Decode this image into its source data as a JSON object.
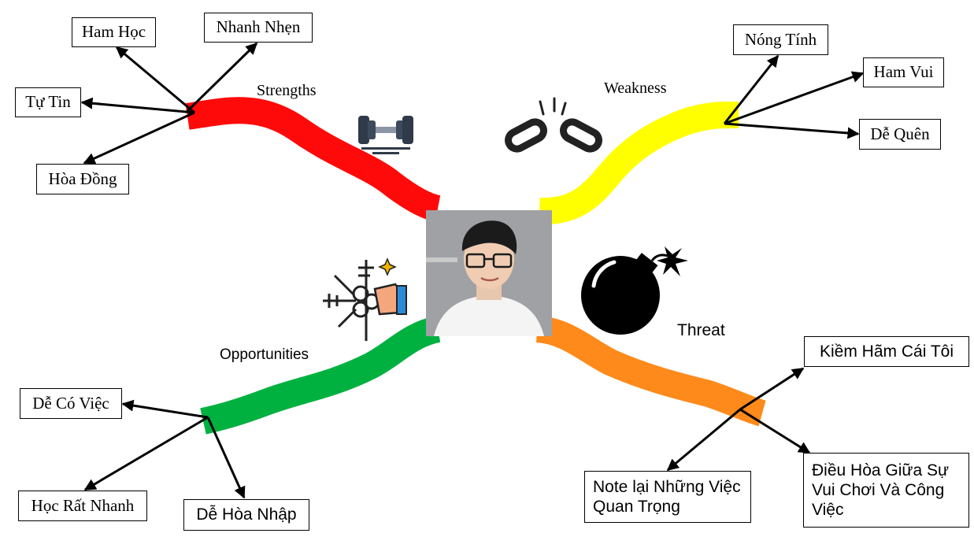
{
  "center": {
    "photo_alt": "Portrait"
  },
  "sections": {
    "strengths": {
      "title": "Strengths",
      "color": "#ff0a0a",
      "icon": "dumbbell-icon",
      "items": [
        "Ham Học",
        "Nhanh Nhẹn",
        "Tự Tin",
        "Hòa Đồng"
      ]
    },
    "weakness": {
      "title": "Weakness",
      "color": "#ffff00",
      "icon": "broken-chain-icon",
      "items": [
        "Nóng Tính",
        "Ham Vui",
        "Dễ Quên"
      ]
    },
    "opportunities": {
      "title": "Opportunities",
      "color": "#00b140",
      "icon": "key-handshake-icon",
      "items": [
        "Dễ Có Việc",
        "Học Rất Nhanh",
        "Dễ Hòa Nhập"
      ]
    },
    "threat": {
      "title": "Threat",
      "color": "#fd8a1b",
      "icon": "bomb-icon",
      "items": [
        "Kiềm Hãm Cái Tôi",
        "Note lại Những Việc Quan Trọng",
        "Điều Hòa Giữa Sự Vui Chơi Và Công Việc"
      ]
    }
  }
}
